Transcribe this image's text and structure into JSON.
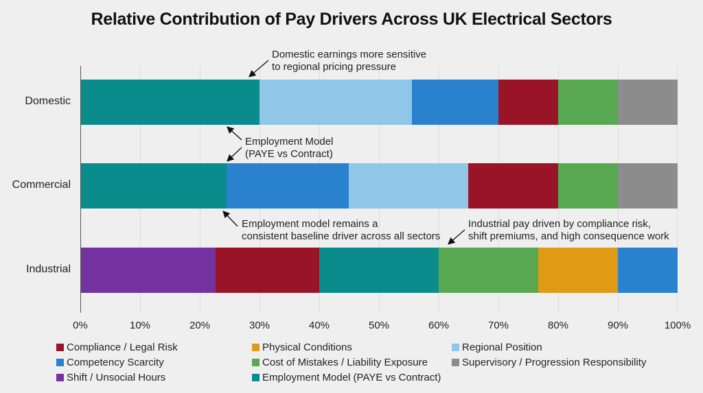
{
  "title": "Relative Contribution of Pay Drivers Across UK Electrical Sectors",
  "colors": {
    "compliance": "#9a1428",
    "physical": "#e09b16",
    "regional": "#90c7e8",
    "competency": "#2a82cf",
    "mistakes": "#58a852",
    "supervisory": "#8c8c8c",
    "shift": "#7332a0",
    "employment": "#0b8c8c"
  },
  "legend": [
    {
      "key": "compliance",
      "label": "Compliance / Legal Risk",
      "color": "#9a1428"
    },
    {
      "key": "physical",
      "label": "Physical Conditions",
      "color": "#e09b16"
    },
    {
      "key": "regional",
      "label": "Regional Position",
      "color": "#90c7e8"
    },
    {
      "key": "competency",
      "label": "Competency Scarcity",
      "color": "#2a82cf"
    },
    {
      "key": "mistakes",
      "label": "Cost of Mistakes / Liability Exposure",
      "color": "#58a852"
    },
    {
      "key": "supervisory",
      "label": "Supervisory / Progression Responsibility",
      "color": "#8c8c8c"
    },
    {
      "key": "shift",
      "label": "Shift / Unsocial Hours",
      "color": "#7332a0"
    },
    {
      "key": "employment",
      "label": "Employment Model (PAYE vs Contract)",
      "color": "#0b8c8c"
    }
  ],
  "x_ticks": [
    "0%",
    "10%",
    "20%",
    "30%",
    "40%",
    "50%",
    "60%",
    "70%",
    "80%",
    "90%",
    "100%"
  ],
  "annotations": {
    "domestic": [
      "Domestic earnings more sensitive",
      "to regional pricing pressure"
    ],
    "employment": [
      "Employment Model",
      "(PAYE vs Contract)"
    ],
    "baseline": [
      "Employment model remains a",
      "consistent baseline driver across all sectors"
    ],
    "industrial": [
      "Industrial pay driven by compliance risk,",
      "shift premiums, and high consequence work"
    ]
  },
  "chart_data": {
    "type": "bar",
    "orientation": "horizontal",
    "stacked": true,
    "normalized_percent": true,
    "title": "Relative Contribution of Pay Drivers Across UK Electrical Sectors",
    "xlabel": "",
    "ylabel": "",
    "xlim": [
      0,
      100
    ],
    "x_tick_labels": [
      "0%",
      "10%",
      "20%",
      "30%",
      "40%",
      "50%",
      "60%",
      "70%",
      "80%",
      "90%",
      "100%"
    ],
    "grid": true,
    "legend_position": "bottom",
    "categories": [
      "Domestic",
      "Commercial",
      "Industrial"
    ],
    "bars": [
      {
        "category": "Domestic",
        "segments": [
          {
            "series": "Employment Model (PAYE vs Contract)",
            "value": 30,
            "color": "#0b8c8c"
          },
          {
            "series": "Regional Position",
            "value": 25.5,
            "color": "#90c7e8"
          },
          {
            "series": "Competency Scarcity",
            "value": 14.5,
            "color": "#2a82cf"
          },
          {
            "series": "Compliance / Legal Risk",
            "value": 10,
            "color": "#9a1428"
          },
          {
            "series": "Cost of Mistakes / Liability Exposure",
            "value": 10,
            "color": "#58a852"
          },
          {
            "series": "Supervisory / Progression Responsibility",
            "value": 10,
            "color": "#8c8c8c"
          }
        ]
      },
      {
        "category": "Commercial",
        "segments": [
          {
            "series": "Employment Model (PAYE vs Contract)",
            "value": 24.5,
            "color": "#0b8c8c"
          },
          {
            "series": "Competency Scarcity",
            "value": 20.5,
            "color": "#2a82cf"
          },
          {
            "series": "Regional Position",
            "value": 20,
            "color": "#90c7e8"
          },
          {
            "series": "Compliance / Legal Risk",
            "value": 15,
            "color": "#9a1428"
          },
          {
            "series": "Cost of Mistakes / Liability Exposure",
            "value": 10,
            "color": "#58a852"
          },
          {
            "series": "Supervisory / Progression Responsibility",
            "value": 10,
            "color": "#8c8c8c"
          }
        ]
      },
      {
        "category": "Industrial",
        "segments": [
          {
            "series": "Shift / Unsocial Hours",
            "value": 22.7,
            "color": "#7332a0"
          },
          {
            "series": "Compliance / Legal Risk",
            "value": 17.3,
            "color": "#9a1428"
          },
          {
            "series": "Employment Model (PAYE vs Contract)",
            "value": 20,
            "color": "#0b8c8c"
          },
          {
            "series": "Cost of Mistakes / Liability Exposure",
            "value": 16.7,
            "color": "#58a852"
          },
          {
            "series": "Physical Conditions",
            "value": 13.3,
            "color": "#e09b16"
          },
          {
            "series": "Competency Scarcity",
            "value": 10,
            "color": "#2a82cf"
          }
        ]
      }
    ],
    "annotations": [
      "Domestic earnings more sensitive to regional pricing pressure",
      "Employment Model (PAYE vs Contract)",
      "Employment model remains a consistent baseline driver across all sectors",
      "Industrial pay driven by compliance risk, shift premiums, and high consequence work"
    ]
  }
}
